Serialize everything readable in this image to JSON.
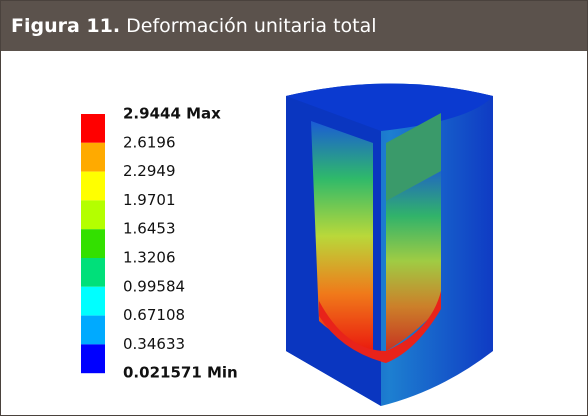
{
  "header": {
    "label": "Figura 11.",
    "title": "Deformación unitaria total"
  },
  "legend": {
    "labels": [
      "2.9444 Max",
      "2.6196",
      "2.2949",
      "1.9701",
      "1.6453",
      "1.3206",
      "0.99584",
      "0.67108",
      "0.34633",
      "0.021571 Min"
    ],
    "colors": [
      "#ff0000",
      "#ffaa00",
      "#ffff00",
      "#b4ff00",
      "#33e000",
      "#00e07a",
      "#00ffff",
      "#00aaff",
      "#0000ff"
    ]
  }
}
